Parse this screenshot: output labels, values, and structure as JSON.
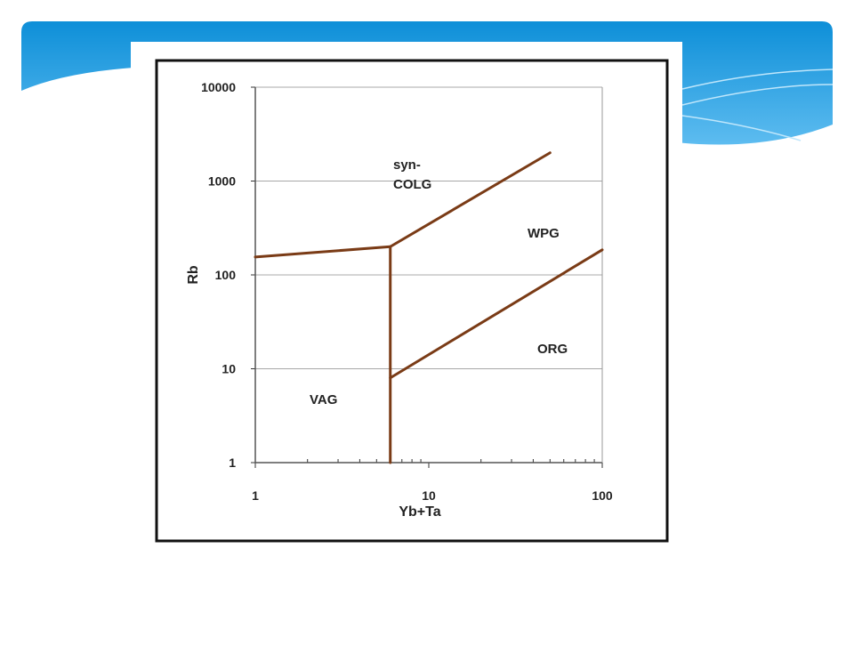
{
  "chart_data": {
    "type": "line",
    "xlabel": "Yb+Ta",
    "ylabel": "Rb",
    "xscale": "log",
    "yscale": "log",
    "xlim": [
      1,
      100
    ],
    "ylim": [
      1,
      10000
    ],
    "xticks": [
      1,
      10,
      100
    ],
    "yticks": [
      1,
      10,
      100,
      1000,
      10000
    ],
    "grid": true,
    "series": [
      {
        "color": "#7a3b16",
        "x": [
          1,
          6
        ],
        "values": [
          155,
          200
        ]
      },
      {
        "color": "#7a3b16",
        "x": [
          6,
          6
        ],
        "values": [
          1,
          200
        ]
      },
      {
        "color": "#7a3b16",
        "x": [
          6,
          50
        ],
        "values": [
          200,
          2000
        ]
      },
      {
        "color": "#7a3b16",
        "x": [
          6,
          100
        ],
        "values": [
          8,
          185
        ]
      }
    ],
    "annotations": [
      [
        "syn-",
        "COLG"
      ],
      [
        "WPG"
      ],
      [
        "ORG"
      ],
      [
        "VAG"
      ]
    ]
  }
}
